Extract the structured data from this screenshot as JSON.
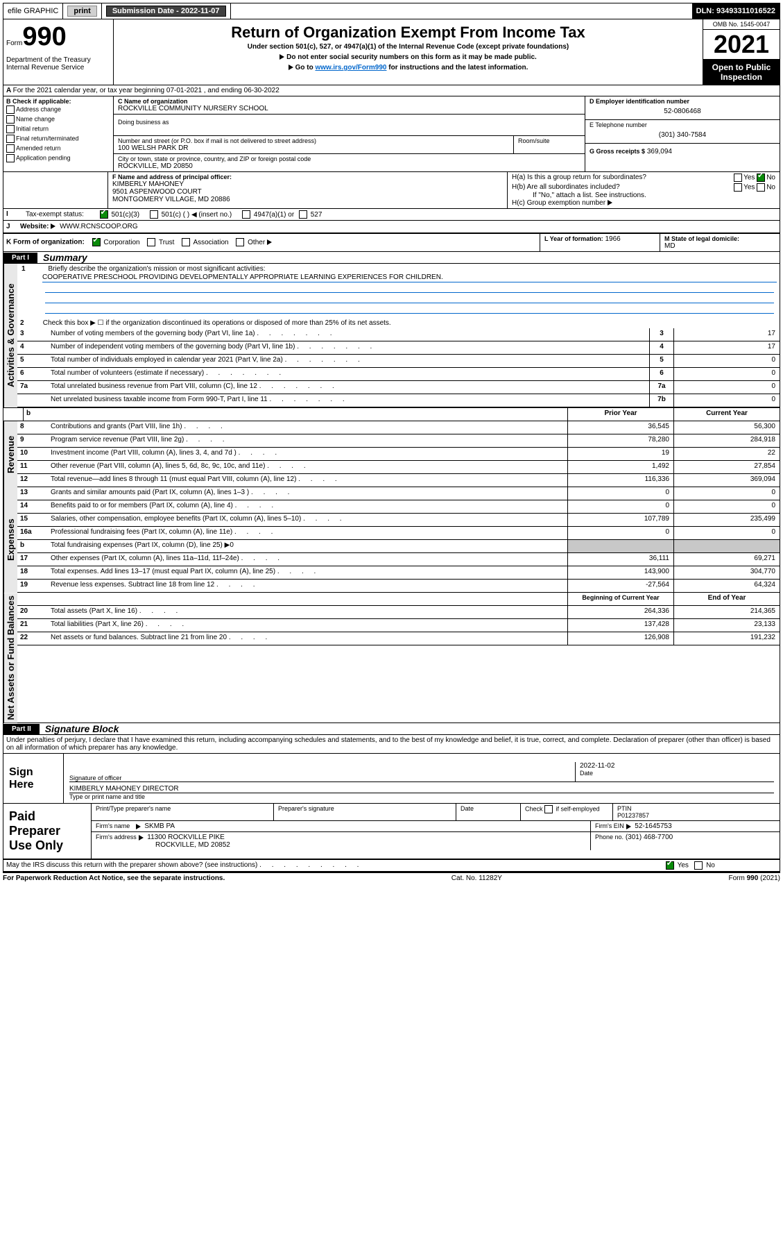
{
  "topbar": {
    "efile": "efile GRAPHIC",
    "print": "print",
    "sub_date_label": "Submission Date - 2022-11-07",
    "dln": "DLN: 93493311016522"
  },
  "header": {
    "form_word": "Form",
    "form_num": "990",
    "dept": "Department of the Treasury\nInternal Revenue Service",
    "title": "Return of Organization Exempt From Income Tax",
    "sub": "Under section 501(c), 527, or 4947(a)(1) of the Internal Revenue Code (except private foundations)",
    "note1": "Do not enter social security numbers on this form as it may be made public.",
    "note2_pre": "Go to ",
    "note2_link": "www.irs.gov/Form990",
    "note2_post": " for instructions and the latest information.",
    "omb": "OMB No. 1545-0047",
    "year": "2021",
    "open": "Open to Public Inspection"
  },
  "periodA": "For the 2021 calendar year, or tax year beginning 07-01-2021  , and ending 06-30-2022",
  "sectionB": {
    "label": "B Check if applicable:",
    "opts": [
      "Address change",
      "Name change",
      "Initial return",
      "Final return/terminated",
      "Amended return",
      "Application pending"
    ]
  },
  "sectionC": {
    "name_label": "C Name of organization",
    "name": "ROCKVILLE COMMUNITY NURSERY SCHOOL",
    "dba_label": "Doing business as",
    "street_label": "Number and street (or P.O. box if mail is not delivered to street address)",
    "room_label": "Room/suite",
    "street": "100 WELSH PARK DR",
    "city_label": "City or town, state or province, country, and ZIP or foreign postal code",
    "city": "ROCKVILLE, MD  20850"
  },
  "sectionD": {
    "label": "D Employer identification number",
    "value": "52-0806468"
  },
  "sectionE": {
    "label": "E Telephone number",
    "value": "(301) 340-7584"
  },
  "sectionG": {
    "label": "G Gross receipts $",
    "value": "369,094"
  },
  "sectionF": {
    "label": "F Name and address of principal officer:",
    "name": "KIMBERLY MAHONEY",
    "addr1": "9501 ASPENWOOD COURT",
    "addr2": "MONTGOMERY VILLAGE, MD  20886"
  },
  "sectionH": {
    "a": "H(a)  Is this a group return for subordinates?",
    "yes": "Yes",
    "no": "No",
    "b": "H(b)  Are all subordinates included?",
    "b_note": "If \"No,\" attach a list. See instructions.",
    "c": "H(c)  Group exemption number"
  },
  "sectionI": {
    "label": "Tax-exempt status:",
    "o1": "501(c)(3)",
    "o2": "501(c) (  ) ◀ (insert no.)",
    "o3": "4947(a)(1) or",
    "o4": "527"
  },
  "sectionJ": {
    "label": "Website:",
    "value": "WWW.RCNSCOOP.ORG"
  },
  "sectionK": {
    "label": "K Form of organization:",
    "o1": "Corporation",
    "o2": "Trust",
    "o3": "Association",
    "o4": "Other"
  },
  "sectionL": {
    "label": "L Year of formation:",
    "value": "1966"
  },
  "sectionM": {
    "label": "M State of legal domicile:",
    "value": "MD"
  },
  "part1": {
    "num": "Part I",
    "title": "Summary"
  },
  "summary": {
    "l1_label": "Briefly describe the organization's mission or most significant activities:",
    "l1_text": "COOPERATIVE PRESCHOOL PROVIDING DEVELOPMENTALLY APPROPRIATE LEARNING EXPERIENCES FOR CHILDREN.",
    "l2": "Check this box ▶ ☐  if the organization discontinued its operations or disposed of more than 25% of its net assets.",
    "rows_gov": [
      {
        "n": "3",
        "d": "Number of voting members of the governing body (Part VI, line 1a)",
        "idx": "3",
        "v": "17"
      },
      {
        "n": "4",
        "d": "Number of independent voting members of the governing body (Part VI, line 1b)",
        "idx": "4",
        "v": "17"
      },
      {
        "n": "5",
        "d": "Total number of individuals employed in calendar year 2021 (Part V, line 2a)",
        "idx": "5",
        "v": "0"
      },
      {
        "n": "6",
        "d": "Total number of volunteers (estimate if necessary)",
        "idx": "6",
        "v": "0"
      },
      {
        "n": "7a",
        "d": "Total unrelated business revenue from Part VIII, column (C), line 12",
        "idx": "7a",
        "v": "0"
      },
      {
        "n": "",
        "d": "Net unrelated business taxable income from Form 990-T, Part I, line 11",
        "idx": "7b",
        "v": "0"
      }
    ],
    "col_b": "b",
    "col_prior": "Prior Year",
    "col_current": "Current Year",
    "rows_rev": [
      {
        "n": "8",
        "d": "Contributions and grants (Part VIII, line 1h)",
        "p": "36,545",
        "c": "56,300"
      },
      {
        "n": "9",
        "d": "Program service revenue (Part VIII, line 2g)",
        "p": "78,280",
        "c": "284,918"
      },
      {
        "n": "10",
        "d": "Investment income (Part VIII, column (A), lines 3, 4, and 7d )",
        "p": "19",
        "c": "22"
      },
      {
        "n": "11",
        "d": "Other revenue (Part VIII, column (A), lines 5, 6d, 8c, 9c, 10c, and 11e)",
        "p": "1,492",
        "c": "27,854"
      },
      {
        "n": "12",
        "d": "Total revenue—add lines 8 through 11 (must equal Part VIII, column (A), line 12)",
        "p": "116,336",
        "c": "369,094"
      }
    ],
    "rows_exp": [
      {
        "n": "13",
        "d": "Grants and similar amounts paid (Part IX, column (A), lines 1–3 )",
        "p": "0",
        "c": "0"
      },
      {
        "n": "14",
        "d": "Benefits paid to or for members (Part IX, column (A), line 4)",
        "p": "0",
        "c": "0"
      },
      {
        "n": "15",
        "d": "Salaries, other compensation, employee benefits (Part IX, column (A), lines 5–10)",
        "p": "107,789",
        "c": "235,499"
      },
      {
        "n": "16a",
        "d": "Professional fundraising fees (Part IX, column (A), line 11e)",
        "p": "0",
        "c": "0"
      }
    ],
    "row_16b": {
      "n": "b",
      "d": "Total fundraising expenses (Part IX, column (D), line 25) ▶0"
    },
    "rows_exp2": [
      {
        "n": "17",
        "d": "Other expenses (Part IX, column (A), lines 11a–11d, 11f–24e)",
        "p": "36,111",
        "c": "69,271"
      },
      {
        "n": "18",
        "d": "Total expenses. Add lines 13–17 (must equal Part IX, column (A), line 25)",
        "p": "143,900",
        "c": "304,770"
      },
      {
        "n": "19",
        "d": "Revenue less expenses. Subtract line 18 from line 12",
        "p": "-27,564",
        "c": "64,324"
      }
    ],
    "col_boy": "Beginning of Current Year",
    "col_eoy": "End of Year",
    "rows_na": [
      {
        "n": "20",
        "d": "Total assets (Part X, line 16)",
        "p": "264,336",
        "c": "214,365"
      },
      {
        "n": "21",
        "d": "Total liabilities (Part X, line 26)",
        "p": "137,428",
        "c": "23,133"
      },
      {
        "n": "22",
        "d": "Net assets or fund balances. Subtract line 21 from line 20",
        "p": "126,908",
        "c": "191,232"
      }
    ],
    "side_gov": "Activities & Governance",
    "side_rev": "Revenue",
    "side_exp": "Expenses",
    "side_na": "Net Assets or Fund Balances"
  },
  "part2": {
    "num": "Part II",
    "title": "Signature Block"
  },
  "declaration": "Under penalties of perjury, I declare that I have examined this return, including accompanying schedules and statements, and to the best of my knowledge and belief, it is true, correct, and complete. Declaration of preparer (other than officer) is based on all information of which preparer has any knowledge.",
  "sign": {
    "label": "Sign Here",
    "sig_of_officer": "Signature of officer",
    "date": "Date",
    "date_val": "2022-11-02",
    "name": "KIMBERLY MAHONEY  DIRECTOR",
    "name_label": "Type or print name and title"
  },
  "preparer": {
    "label": "Paid Preparer Use Only",
    "h1": "Print/Type preparer's name",
    "h2": "Preparer's signature",
    "h3": "Date",
    "h4_a": "Check",
    "h4_b": "if self-employed",
    "h5": "PTIN",
    "ptin": "P01237857",
    "firm_name_l": "Firm's name",
    "firm_name": "SKMB PA",
    "firm_ein_l": "Firm's EIN",
    "firm_ein": "52-1645753",
    "firm_addr_l": "Firm's address",
    "firm_addr1": "11300 ROCKVILLE PIKE",
    "firm_addr2": "ROCKVILLE, MD  20852",
    "phone_l": "Phone no.",
    "phone": "(301) 468-7700"
  },
  "discuss": {
    "q": "May the IRS discuss this return with the preparer shown above? (see instructions)",
    "yes": "Yes",
    "no": "No"
  },
  "footer": {
    "left": "For Paperwork Reduction Act Notice, see the separate instructions.",
    "mid": "Cat. No. 11282Y",
    "right_a": "Form ",
    "right_b": "990",
    "right_c": " (2021)"
  }
}
